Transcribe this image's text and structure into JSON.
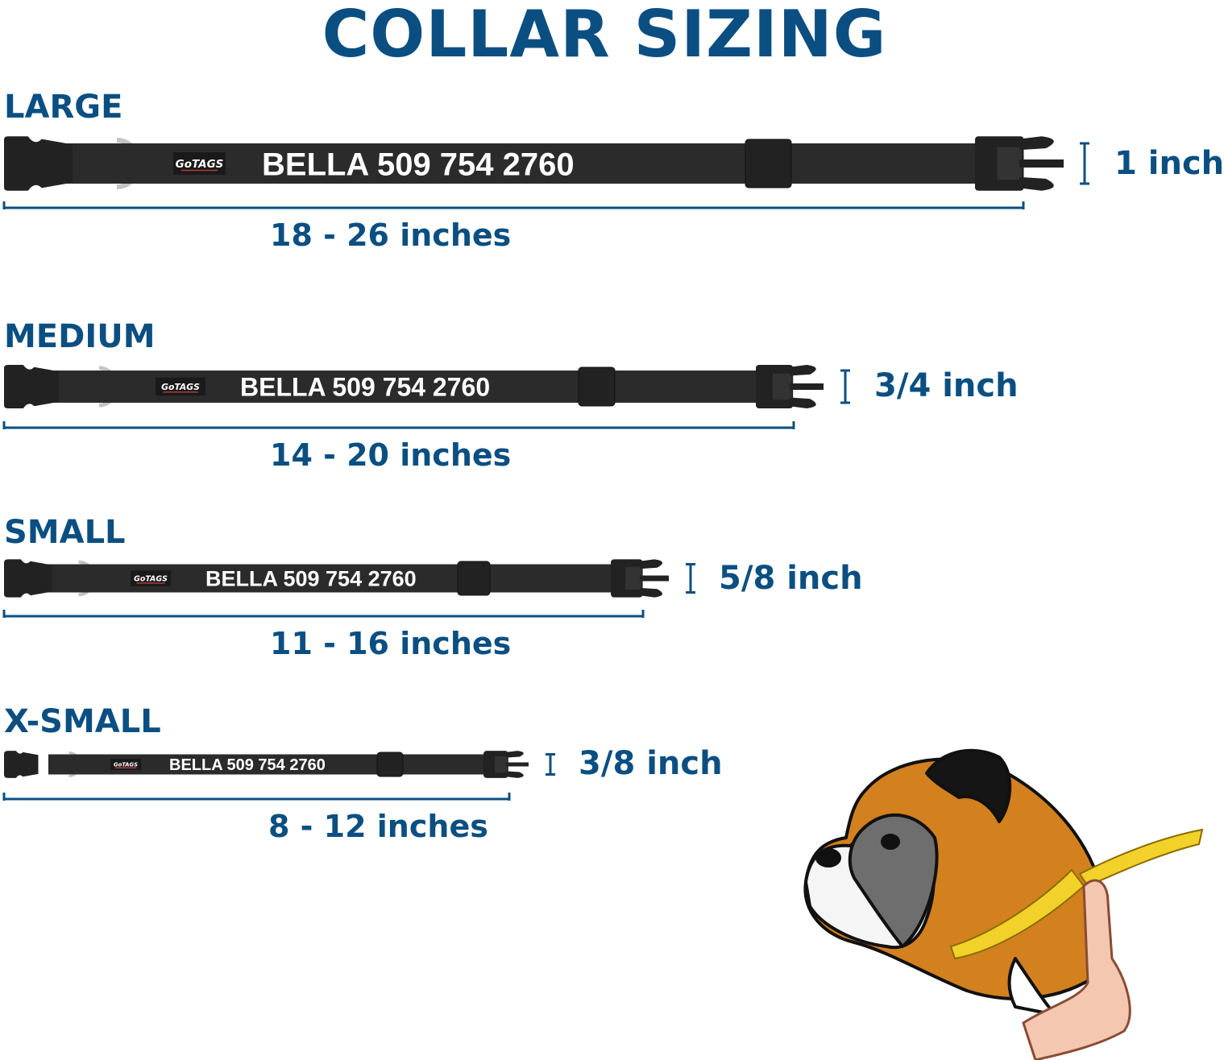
{
  "title": "COLLAR SIZING",
  "brand_logo": "GoTAGS",
  "colors": {
    "accent": "#0b4f82",
    "collar": "#2b2b2b",
    "ring": "#c4c4c4",
    "dog_fawn": "#d3801f",
    "tape": "#f2d22a"
  },
  "sizes": [
    {
      "label": "LARGE",
      "engraving": "BELLA 509 754 2760",
      "range": "18 - 26 inches",
      "width": "1 inch"
    },
    {
      "label": "MEDIUM",
      "engraving": "BELLA 509 754 2760",
      "range": "14 - 20 inches",
      "width": "3/4 inch"
    },
    {
      "label": "SMALL",
      "engraving": "BELLA 509 754 2760",
      "range": "11 - 16 inches",
      "width": "5/8 inch"
    },
    {
      "label": "X-SMALL",
      "engraving": "BELLA 509 754 2760",
      "range": "8 - 12 inches",
      "width": "3/8 inch"
    }
  ],
  "illustration": "boxer-dog-neck-measuring-icon"
}
